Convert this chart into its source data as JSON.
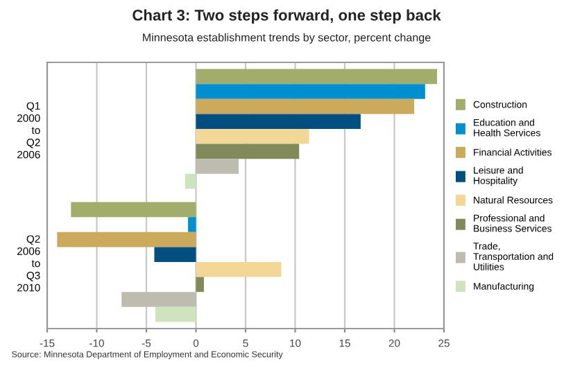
{
  "chart_data": {
    "type": "bar",
    "orientation": "horizontal",
    "title": "Chart 3: Two steps forward, one step back",
    "subtitle": "Minnesota establishment trends by sector, percent change",
    "categories": [
      "Q1\n2000\nto\nQ2\n2006",
      "Q2\n2006\nto\nQ3\n2010"
    ],
    "series": [
      {
        "name": "Construction",
        "color": "#a3ad6b",
        "values": [
          24.3,
          -12.6
        ]
      },
      {
        "name": "Education and\nHealth Services",
        "color": "#008fd0",
        "values": [
          23.1,
          -0.8
        ]
      },
      {
        "name": "Financial Activities",
        "color": "#ccaa5c",
        "values": [
          22.0,
          -14.0
        ]
      },
      {
        "name": "Leisure and\nHospitality",
        "color": "#004f80",
        "values": [
          16.6,
          -4.2
        ]
      },
      {
        "name": "Natural Resources",
        "color": "#f2d796",
        "values": [
          11.4,
          8.6
        ]
      },
      {
        "name": "Professional and\nBusiness Services",
        "color": "#838a5a",
        "values": [
          10.4,
          0.8
        ]
      },
      {
        "name": "Trade,\nTransportation and\nUtilities",
        "color": "#bdbcaf",
        "values": [
          4.3,
          -7.5
        ]
      },
      {
        "name": "Manufacturing",
        "color": "#cde4bf",
        "values": [
          -1.1,
          -4.1
        ]
      }
    ],
    "xlim": [
      -15,
      25
    ],
    "xticks": [
      -15,
      -10,
      -5,
      0,
      5,
      10,
      15,
      20,
      25
    ],
    "grid": "x",
    "legend": "right",
    "annotations": [
      "Source: Minnesota Department of Employment and Economic Security"
    ]
  }
}
